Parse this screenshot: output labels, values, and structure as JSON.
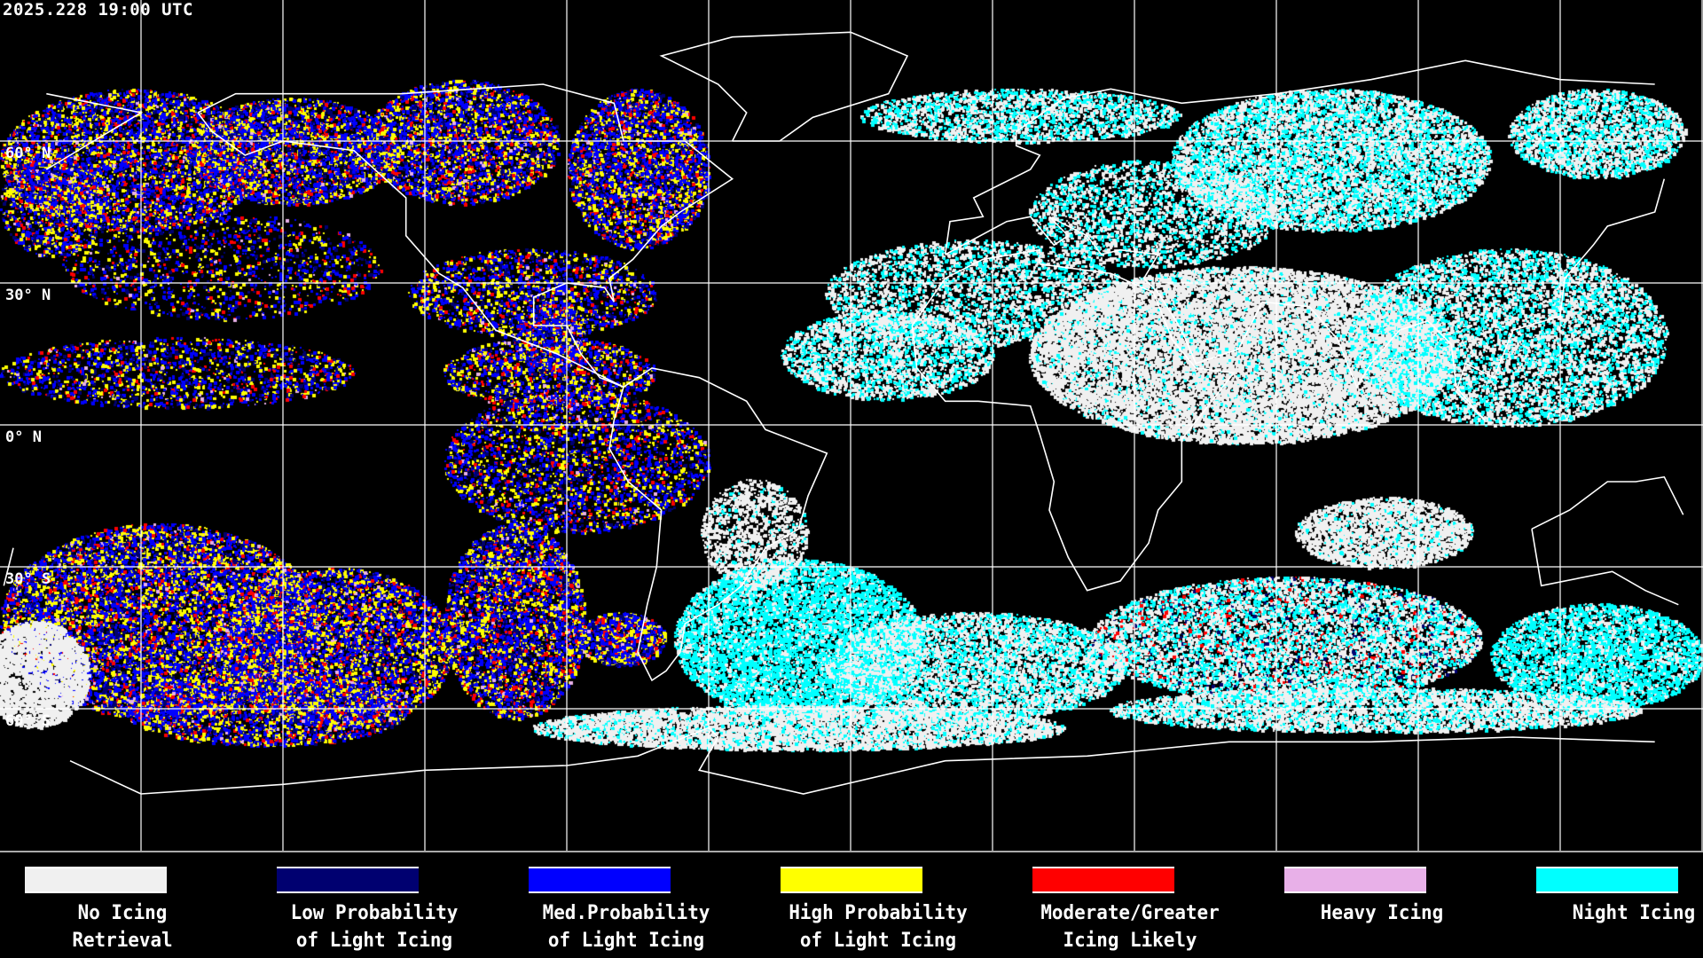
{
  "timestamp": "2025.228 19:00 UTC",
  "lat_labels": [
    "60° N",
    "30° N",
    "0° N",
    "30° S",
    "60° S"
  ],
  "map": {
    "projection": "equirectangular",
    "grid_spacing_deg": 30,
    "background": "#000000",
    "coastline_color": "#ffffff",
    "gridline_color": "#ffffff"
  },
  "legend": [
    {
      "line1": "No Icing",
      "line2": "Retrieval",
      "color": "#f0f0f0"
    },
    {
      "line1": "Low Probability",
      "line2": "of Light Icing",
      "color": "#000070"
    },
    {
      "line1": "Med.Probability",
      "line2": "of Light Icing",
      "color": "#0000ff"
    },
    {
      "line1": "High Probability",
      "line2": "of Light Icing",
      "color": "#ffff00"
    },
    {
      "line1": "Moderate/Greater",
      "line2": "Icing Likely",
      "color": "#ff0000"
    },
    {
      "line1": "Heavy Icing",
      "line2": "",
      "color": "#e8b0e8"
    },
    {
      "line1": "Night Icing",
      "line2": "",
      "color": "#00ffff"
    }
  ]
}
